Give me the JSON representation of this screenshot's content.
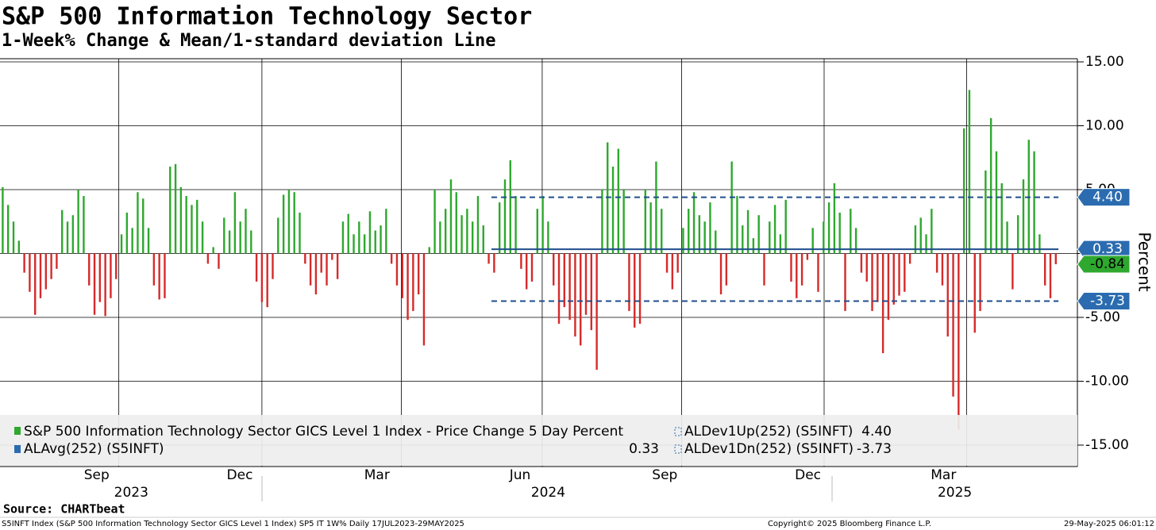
{
  "chart_data": {
    "type": "bar",
    "title": "S&P 500 Information Technology Sector",
    "subtitle": "1-Week% Change & Mean/1-standard deviation Line",
    "y_label": "Percent",
    "series_name": "S&P 500 Information Technology Sector GICS Level 1 Index - Price Change 5 Day Percent",
    "positive_color": "#2ea82e",
    "negative_color": "#d62a2a",
    "values": [
      5.2,
      3.8,
      2.5,
      1.0,
      -1.5,
      -3,
      -4.8,
      -3.5,
      -2.8,
      -2,
      -1.2,
      3.4,
      2.5,
      3,
      5.0,
      4.5,
      -2.5,
      -4.8,
      -3.8,
      -4.9,
      -3.5,
      -2,
      1.5,
      3.2,
      2,
      4.8,
      4.3,
      2,
      -2.5,
      -3.6,
      -3.5,
      6.8,
      7.0,
      5.2,
      4.5,
      3.8,
      4.2,
      2.5,
      -0.8,
      0.5,
      -1.2,
      2.8,
      1.8,
      4.8,
      2.5,
      3.5,
      1.8,
      -2.2,
      -3.8,
      -4.2,
      -2,
      2.8,
      4.6,
      5.0,
      4.8,
      3.2,
      -0.8,
      -2.5,
      -3.2,
      -1.5,
      -2.5,
      -0.5,
      -2.0,
      2.5,
      3.1,
      1.5,
      2.5,
      1.5,
      3.3,
      1.8,
      2.2,
      3.5,
      -0.8,
      -2.5,
      -3.5,
      -5.2,
      -4.5,
      -3.2,
      -7.2,
      0.5,
      5.0,
      2.5,
      3.5,
      5.8,
      4.8,
      3.0,
      3.5,
      2.5,
      4.5,
      2.2,
      -0.8,
      -1.5,
      4.0,
      5.8,
      7.3,
      4.5,
      -1.2,
      -2.8,
      -2.2,
      3.5,
      4.5,
      2.5,
      -2.5,
      -5.5,
      -4.2,
      -5.2,
      -6.5,
      -7.2,
      -4.8,
      -6.0,
      -9.1,
      5.0,
      8.7,
      6.8,
      8.2,
      5.0,
      -4.5,
      -5.8,
      -5.5,
      5.0,
      4.0,
      7.2,
      3.5,
      -1.5,
      -2.8,
      -1.5,
      2.0,
      3.5,
      4.8,
      3.0,
      2.5,
      4.0,
      1.8,
      -3.2,
      -2.5,
      7.2,
      4.5,
      2.2,
      3.4,
      1.2,
      3.0,
      -2.5,
      2.5,
      3.8,
      1.5,
      4.2,
      -2.2,
      -3.5,
      -2.5,
      -0.5,
      2.0,
      -3.0,
      2.5,
      4.0,
      5.5,
      3.2,
      -4.5,
      3.5,
      2.0,
      -1.5,
      -2.2,
      -4.5,
      -3.8,
      -7.8,
      -5.2,
      -4.0,
      -3.3,
      -3.0,
      -0.8,
      2.2,
      2.8,
      1.5,
      3.5,
      -1.5,
      -2.5,
      -6.5,
      -11.2,
      -13.8,
      9.8,
      12.8,
      -6.2,
      -4.5,
      6.5,
      10.6,
      8.0,
      5.5,
      2.5,
      -2.8,
      3.0,
      5.8,
      8.9,
      8.0,
      1.5,
      -2.5,
      -3.5,
      -0.84
    ],
    "last_value_label": "-0.84",
    "reference_lines": [
      {
        "name": "ALAvg(252) (S5INFT)",
        "value": 0.33,
        "value_label": "0.33",
        "style": "solid",
        "start": 91
      },
      {
        "name": "ALDev1Up(252) (S5INFT)",
        "value": 4.4,
        "value_label": "4.40",
        "style": "dashed",
        "start": 91
      },
      {
        "name": "ALDev1Dn(252) (S5INFT)",
        "value": -3.73,
        "value_label": "-3.73",
        "style": "dashed",
        "start": 91
      }
    ],
    "line_color": "#1f4e8c",
    "ylim": [
      -15,
      15
    ],
    "yticks": [
      {
        "value": 15,
        "label": "15.00"
      },
      {
        "value": 10,
        "label": "10.00"
      },
      {
        "value": 5,
        "label": "5.00"
      },
      {
        "value": 0,
        "label": "0.00"
      },
      {
        "value": -5,
        "label": "-5.00"
      },
      {
        "value": -10,
        "label": "-10.00"
      },
      {
        "value": -15,
        "label": "-15.00"
      }
    ],
    "xlim": [
      0,
      199.5
    ],
    "xticks": [
      {
        "value": 17.9,
        "label": "Sep"
      },
      {
        "value": 44.4,
        "label": "Dec"
      },
      {
        "value": 69.8,
        "label": "Mar"
      },
      {
        "value": 96.3,
        "label": "Jun"
      },
      {
        "value": 123.1,
        "label": "Sep"
      },
      {
        "value": 149.6,
        "label": "Dec"
      },
      {
        "value": 174.7,
        "label": "Mar"
      }
    ],
    "year_ticks": [
      {
        "value": 24.3,
        "label": "2023"
      },
      {
        "value": 101.5,
        "label": "2024"
      },
      {
        "value": 176.8,
        "label": "2025"
      }
    ],
    "xgrid": [
      22,
      48.5,
      74.3,
      100.4,
      126.2,
      152.6,
      179
    ],
    "grid": true,
    "footer": {
      "source": "Source: CHARTbeat",
      "info": "S5INFT Index (S&P 500 Information Technology Sector GICS Level 1 Index) SP5 IT 1W%  Daily 17JUL2023-29MAY2025",
      "copyright": "Copyright© 2025 Bloomberg Finance L.P.",
      "timestamp": "29-May-2025 06:01:12"
    }
  }
}
